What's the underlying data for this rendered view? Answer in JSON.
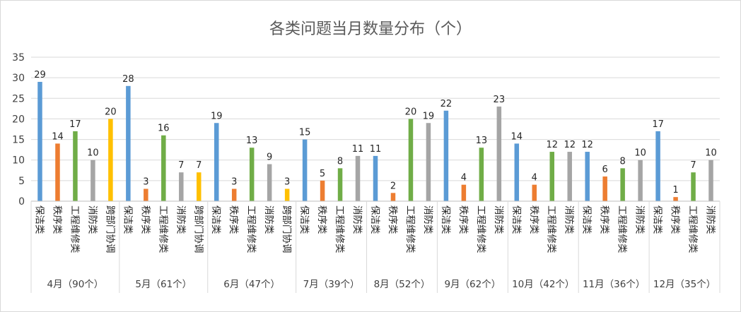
{
  "chart_data": {
    "type": "bar",
    "title": "各类问题当月数量分布（个）",
    "xlabel": "",
    "ylabel": "",
    "ylim": [
      0,
      35
    ],
    "yticks": [
      0,
      5,
      10,
      15,
      20,
      25,
      30,
      35
    ],
    "grid": true,
    "legend": "none",
    "colors": {
      "保洁类": "#5b9bd5",
      "秩序类": "#ed7d31",
      "工程维修类": "#70ad47",
      "消防类": "#a5a5a5",
      "跨部门协调": "#ffc000"
    },
    "groups": [
      {
        "label": "4月（90个）",
        "bars": [
          {
            "category": "保洁类",
            "value": 29
          },
          {
            "category": "秩序类",
            "value": 14
          },
          {
            "category": "工程维修类",
            "value": 17
          },
          {
            "category": "消防类",
            "value": 10
          },
          {
            "category": "跨部门协调",
            "value": 20
          }
        ]
      },
      {
        "label": "5月（61个）",
        "bars": [
          {
            "category": "保洁类",
            "value": 28
          },
          {
            "category": "秩序类",
            "value": 3
          },
          {
            "category": "工程维修类",
            "value": 16
          },
          {
            "category": "消防类",
            "value": 7
          },
          {
            "category": "跨部门协调",
            "value": 7
          }
        ]
      },
      {
        "label": "6月（47个）",
        "bars": [
          {
            "category": "保洁类",
            "value": 19
          },
          {
            "category": "秩序类",
            "value": 3
          },
          {
            "category": "工程维修类",
            "value": 13
          },
          {
            "category": "消防类",
            "value": 9
          },
          {
            "category": "跨部门协调",
            "value": 3
          }
        ]
      },
      {
        "label": "7月（39个）",
        "bars": [
          {
            "category": "保洁类",
            "value": 15
          },
          {
            "category": "秩序类",
            "value": 5
          },
          {
            "category": "工程维修类",
            "value": 8
          },
          {
            "category": "消防类",
            "value": 11
          }
        ]
      },
      {
        "label": "8月（52个）",
        "bars": [
          {
            "category": "保洁类",
            "value": 11
          },
          {
            "category": "秩序类",
            "value": 2
          },
          {
            "category": "工程维修类",
            "value": 20
          },
          {
            "category": "消防类",
            "value": 19
          }
        ]
      },
      {
        "label": "9月（62个）",
        "bars": [
          {
            "category": "保洁类",
            "value": 22
          },
          {
            "category": "秩序类",
            "value": 4
          },
          {
            "category": "工程维修类",
            "value": 13
          },
          {
            "category": "消防类",
            "value": 23
          }
        ]
      },
      {
        "label": "10月（42个）",
        "bars": [
          {
            "category": "保洁类",
            "value": 14
          },
          {
            "category": "秩序类",
            "value": 4
          },
          {
            "category": "工程维修类",
            "value": 12
          },
          {
            "category": "消防类",
            "value": 12
          }
        ]
      },
      {
        "label": "11月（36个）",
        "bars": [
          {
            "category": "保洁类",
            "value": 12
          },
          {
            "category": "秩序类",
            "value": 6
          },
          {
            "category": "工程维修类",
            "value": 8
          },
          {
            "category": "消防类",
            "value": 10
          }
        ]
      },
      {
        "label": "12月（35个）",
        "bars": [
          {
            "category": "保洁类",
            "value": 17
          },
          {
            "category": "秩序类",
            "value": 1
          },
          {
            "category": "工程维修类",
            "value": 7
          },
          {
            "category": "消防类",
            "value": 10
          }
        ]
      }
    ]
  }
}
